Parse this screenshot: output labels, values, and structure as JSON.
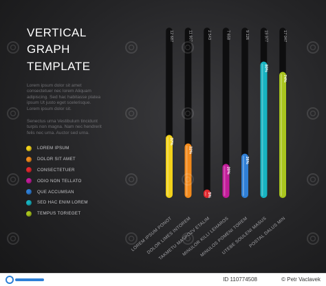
{
  "title": {
    "line1": "VERTICAL",
    "line2": "GRAPH",
    "line3": "TEMPLATE"
  },
  "paragraphs": [
    "Lorem ipsum dolor sit amet consectetuer nec lorem Aliquam adipiscing. Sed hac habitasse platea ipsum Ut justo eget scelerisque. Lorem ipsum dolor sit.",
    "Senectus urna Vestibulum tincidunt turpis non magna. Nam nec hendrerit felis nec urna. Auctor sed urna."
  ],
  "chart_data": {
    "type": "bar",
    "orientation": "vertical",
    "ylim": [
      0,
      100
    ],
    "bars": [
      {
        "category": "LOREM IPSUM PONOT",
        "value": 37,
        "pct_label": "37%",
        "top_label": "12 687",
        "color": "#f2d21b"
      },
      {
        "category": "DOLOR LIMES INTOREM",
        "value": 32,
        "pct_label": "32%",
        "top_label": "11 907",
        "color": "#f28a1c"
      },
      {
        "category": "TAKMETU MASPOZV ETALIM",
        "value": 5,
        "pct_label": "5%",
        "top_label": "2 543",
        "color": "#e1282e"
      },
      {
        "category": "MINULOR KILLI LEHAROS",
        "value": 20,
        "pct_label": "20%",
        "top_label": "7 658",
        "color": "#c21c9a"
      },
      {
        "category": "MINULOS POMENI TOREM",
        "value": 26,
        "pct_label": "26%",
        "top_label": "9 126",
        "color": "#2f7fd6"
      },
      {
        "category": "UTEBE SOULENI MASUS",
        "value": 80,
        "pct_label": "80%",
        "top_label": "19 977",
        "color": "#17b3c1"
      },
      {
        "category": "POSTAL DALUS MIN",
        "value": 74,
        "pct_label": "74%",
        "top_label": "17 047",
        "color": "#a9c51e"
      }
    ]
  },
  "legend": [
    {
      "label": "LOREM IPSUM",
      "color": "#f2d21b"
    },
    {
      "label": "DOLOR SIT AMET",
      "color": "#f28a1c"
    },
    {
      "label": "CONSECTETUER",
      "color": "#e1282e"
    },
    {
      "label": "ODIO NON TELLATO",
      "color": "#c21c9a"
    },
    {
      "label": "QUE ACCUMSAN",
      "color": "#2f7fd6"
    },
    {
      "label": "SED HAC ENIM LOREM",
      "color": "#17b3c1"
    },
    {
      "label": "TEMPUS TORIEGET",
      "color": "#a9c51e"
    }
  ],
  "footer": {
    "brand": "dreamstime",
    "id_text": "ID 110774508",
    "author": "© Petr Vaclavek"
  }
}
